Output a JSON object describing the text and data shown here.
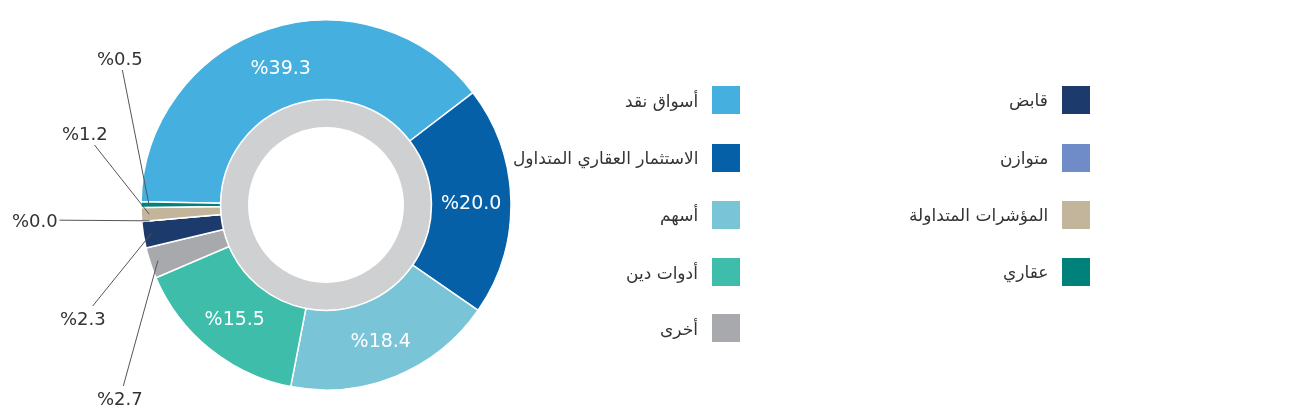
{
  "chart_data": {
    "type": "donut",
    "categories": [
      "أسواق نقد",
      "الاستثمار العقاري المتداول",
      "أسهم",
      "أدوات دين",
      "أخرى",
      "قابض",
      "متوازن",
      "المؤشرات المتداولة",
      "عقاري"
    ],
    "values": [
      39.3,
      20.0,
      18.4,
      15.5,
      2.7,
      2.3,
      0.0,
      1.2,
      0.5
    ],
    "value_labels": [
      "%39.3",
      "%20.0",
      "%18.4",
      "%15.5",
      "%2.7",
      "%2.3",
      "%0.0",
      "%1.2",
      "%0.5"
    ],
    "colors": [
      "#45b0e0",
      "#0560a8",
      "#7ac4d8",
      "#3dbdaa",
      "#a7a9ac",
      "#1c3a6b",
      "#6f8cc8",
      "#c2b59b",
      "#00827a"
    ],
    "legend": "right"
  }
}
